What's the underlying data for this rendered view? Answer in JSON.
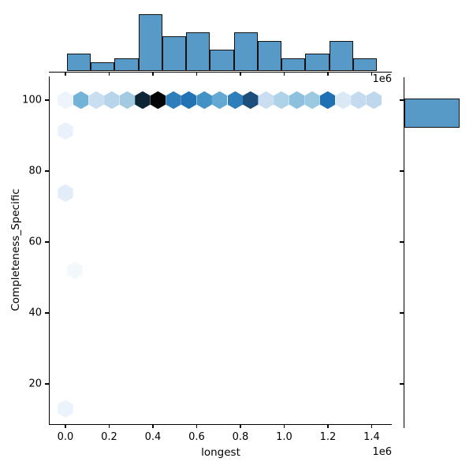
{
  "figure": {
    "background": "#ffffff",
    "bar_fill": "#5799c7",
    "bar_edge": "#111111",
    "axis_color": "#000000",
    "colormap": "Blues (darker hexagon = higher count)"
  },
  "axes": {
    "x_label": "longest",
    "y_label": "Completeness_Specific",
    "x_offset_label": "1e6",
    "top_offset_label": "1e6",
    "x_tick_labels": [
      "0.0",
      "0.2",
      "0.4",
      "0.6",
      "0.8",
      "1.0",
      "1.2",
      "1.4"
    ],
    "x_tick_values_e6": [
      0.0,
      0.2,
      0.4,
      0.6,
      0.8,
      1.0,
      1.2,
      1.4
    ],
    "y_tick_labels": [
      "100",
      "80",
      "60",
      "40",
      "20"
    ],
    "y_tick_values": [
      100,
      80,
      60,
      40,
      20
    ]
  },
  "chart_data": {
    "type": "hexbin",
    "title": "",
    "xlabel": "longest",
    "ylabel": "Completeness_Specific",
    "x_unit": "1e6",
    "xlim_e6": [
      -0.076,
      1.494
    ],
    "ylim": [
      8.5,
      106.6
    ],
    "legend": "none",
    "grid": false,
    "hexbin_points": [
      {
        "x_e6": 0.0,
        "y": 100.0,
        "color": "#edf4fb"
      },
      {
        "x_e6": 0.071,
        "y": 100.0,
        "color": "#74b3d8"
      },
      {
        "x_e6": 0.141,
        "y": 100.0,
        "color": "#c9def0"
      },
      {
        "x_e6": 0.212,
        "y": 100.0,
        "color": "#b7d5ea"
      },
      {
        "x_e6": 0.282,
        "y": 100.0,
        "color": "#a2cbe2"
      },
      {
        "x_e6": 0.353,
        "y": 100.0,
        "color": "#0e2535"
      },
      {
        "x_e6": 0.423,
        "y": 100.0,
        "color": "#030507"
      },
      {
        "x_e6": 0.494,
        "y": 100.0,
        "color": "#2e7ebc"
      },
      {
        "x_e6": 0.564,
        "y": 100.0,
        "color": "#2173b5"
      },
      {
        "x_e6": 0.635,
        "y": 100.0,
        "color": "#4292c6"
      },
      {
        "x_e6": 0.705,
        "y": 100.0,
        "color": "#64a9d3"
      },
      {
        "x_e6": 0.776,
        "y": 100.0,
        "color": "#2e7ebc"
      },
      {
        "x_e6": 0.846,
        "y": 100.0,
        "color": "#1d4f7c"
      },
      {
        "x_e6": 0.917,
        "y": 100.0,
        "color": "#c9def0"
      },
      {
        "x_e6": 0.987,
        "y": 100.0,
        "color": "#aed2e8"
      },
      {
        "x_e6": 1.058,
        "y": 100.0,
        "color": "#8cc0dd"
      },
      {
        "x_e6": 1.128,
        "y": 100.0,
        "color": "#9cc9e2"
      },
      {
        "x_e6": 1.199,
        "y": 100.0,
        "color": "#2070b4"
      },
      {
        "x_e6": 1.269,
        "y": 100.0,
        "color": "#dbe9f6"
      },
      {
        "x_e6": 1.34,
        "y": 100.0,
        "color": "#c4dbef"
      },
      {
        "x_e6": 1.41,
        "y": 100.0,
        "color": "#bdd7ec"
      },
      {
        "x_e6": 0.0,
        "y": 91.3,
        "color": "#e9f2fa"
      },
      {
        "x_e6": 0.0,
        "y": 73.8,
        "color": "#e2edf8"
      },
      {
        "x_e6": 0.043,
        "y": 52.0,
        "color": "#f3f8fd"
      },
      {
        "x_e6": 0.0,
        "y": 13.0,
        "color": "#ebf3fb"
      }
    ],
    "top_histogram": {
      "orientation": "vertical",
      "bin_start_e6": 0.007,
      "bin_width_e6": 0.109,
      "counts": [
        4,
        2,
        3,
        13,
        8,
        9,
        5,
        9,
        7,
        3,
        4,
        7,
        3
      ]
    },
    "right_histogram": {
      "orientation": "horizontal",
      "bars": [
        {
          "y_from": 92.2,
          "y_to": 100.4,
          "relative_width": 1.0
        }
      ]
    }
  }
}
